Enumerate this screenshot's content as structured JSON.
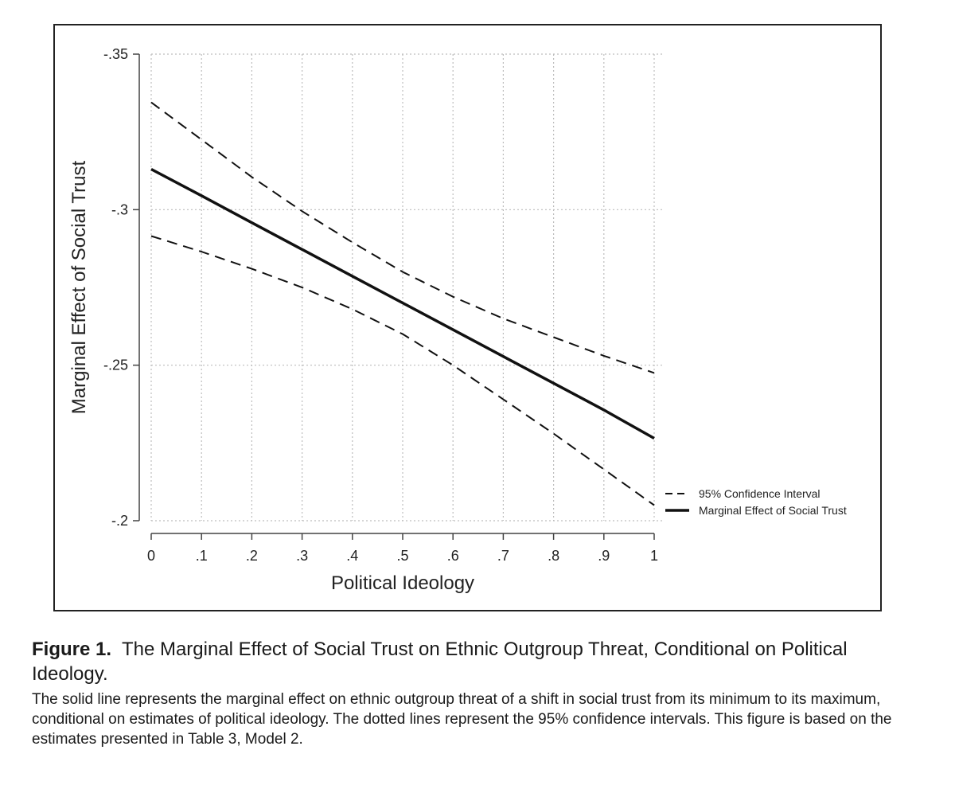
{
  "chart_data": {
    "type": "line",
    "xlabel": "Political Ideology",
    "ylabel": "Marginal Effect of Social Trust",
    "x_ticks": [
      {
        "v": 0,
        "label": "0"
      },
      {
        "v": 0.1,
        "label": ".1"
      },
      {
        "v": 0.2,
        "label": ".2"
      },
      {
        "v": 0.3,
        "label": ".3"
      },
      {
        "v": 0.4,
        "label": ".4"
      },
      {
        "v": 0.5,
        "label": ".5"
      },
      {
        "v": 0.6,
        "label": ".6"
      },
      {
        "v": 0.7,
        "label": ".7"
      },
      {
        "v": 0.8,
        "label": ".8"
      },
      {
        "v": 0.9,
        "label": ".9"
      },
      {
        "v": 1,
        "label": "1"
      }
    ],
    "y_ticks": [
      {
        "v": -0.35,
        "label": "-.35"
      },
      {
        "v": -0.3,
        "label": "-.3"
      },
      {
        "v": -0.25,
        "label": "-.25"
      },
      {
        "v": -0.2,
        "label": "-.2"
      }
    ],
    "xlim": [
      0,
      1
    ],
    "ylim": [
      -0.35,
      -0.2
    ],
    "y_reversed": true,
    "grid": true,
    "legend_position": "right",
    "x": [
      0,
      0.1,
      0.2,
      0.3,
      0.4,
      0.5,
      0.6,
      0.7,
      0.8,
      0.9,
      1
    ],
    "series": [
      {
        "name": "95% Confidence Interval",
        "style": "dashed",
        "values": [
          -0.3345,
          -0.3225,
          -0.3105,
          -0.2995,
          -0.2895,
          -0.28,
          -0.272,
          -0.265,
          -0.259,
          -0.253,
          -0.2475
        ]
      },
      {
        "name": "95% Confidence Interval",
        "style": "dashed",
        "legend": false,
        "values": [
          -0.2915,
          -0.2865,
          -0.281,
          -0.275,
          -0.268,
          -0.26,
          -0.25,
          -0.239,
          -0.228,
          -0.2165,
          -0.205
        ]
      },
      {
        "name": "Marginal Effect of Social Trust",
        "style": "solid",
        "values": [
          -0.313,
          -0.3045,
          -0.2958,
          -0.2872,
          -0.2786,
          -0.27,
          -0.2614,
          -0.2528,
          -0.2442,
          -0.2356,
          -0.2265
        ]
      }
    ]
  },
  "caption": {
    "label": "Figure 1.",
    "title": "The Marginal Effect of Social Trust on Ethnic Outgroup Threat, Conditional on Political Ideology.",
    "body": "The solid line represents the marginal effect on ethnic outgroup threat of a shift in social trust from its minimum to its maximum, conditional on estimates of political ideology. The dotted lines represent the 95% confidence intervals. This figure is based on the estimates presented in Table 3, Model 2."
  },
  "colors": {
    "line": "#111111",
    "grid": "#bdbdbd",
    "axis": "#444444"
  }
}
